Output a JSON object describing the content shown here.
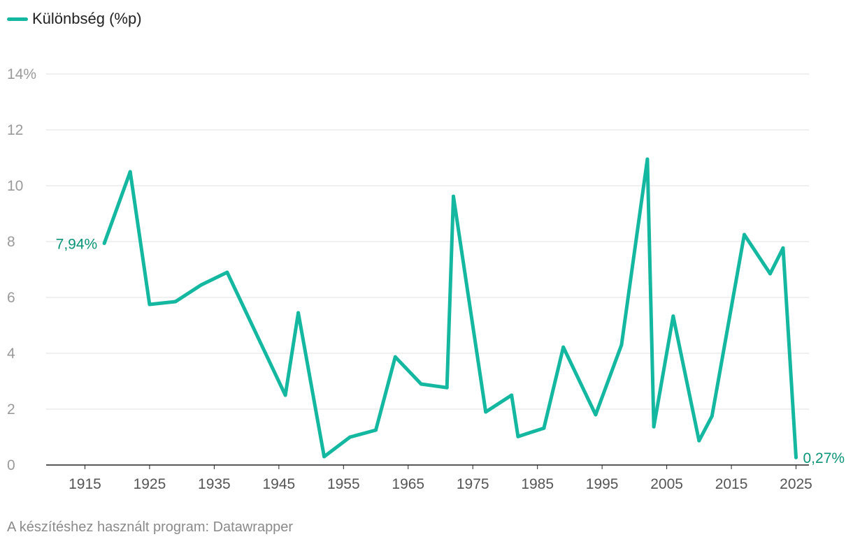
{
  "legend": {
    "label": "Különbség (%p)"
  },
  "footer": {
    "text": "A készítéshez használt program: Datawrapper"
  },
  "colors": {
    "series": "#14b8a0",
    "label": "#0a9478",
    "grid": "#e2e2e2",
    "axis": "#222222",
    "tick": "#9a9a9a"
  },
  "chart_data": {
    "type": "line",
    "ylim": [
      0,
      14
    ],
    "xlim": [
      1909,
      2027
    ],
    "y_ticks": [
      {
        "value": 0,
        "label": "0"
      },
      {
        "value": 2,
        "label": "2"
      },
      {
        "value": 4,
        "label": "4"
      },
      {
        "value": 6,
        "label": "6"
      },
      {
        "value": 8,
        "label": "8"
      },
      {
        "value": 10,
        "label": "10"
      },
      {
        "value": 12,
        "label": "12"
      },
      {
        "value": 14,
        "label": "14%"
      }
    ],
    "x_ticks": [
      1915,
      1925,
      1935,
      1945,
      1955,
      1965,
      1975,
      1985,
      1995,
      2005,
      2015,
      2025
    ],
    "grid": true,
    "series": [
      {
        "name": "Különbség (%p)",
        "x": [
          1918,
          1922,
          1925,
          1929,
          1933,
          1937,
          1946,
          1948,
          1952,
          1956,
          1960,
          1963,
          1967,
          1971,
          1972,
          1977,
          1981,
          1982,
          1986,
          1989,
          1994,
          1998,
          2002,
          2003,
          2006,
          2010,
          2012,
          2017,
          2021,
          2023,
          2025
        ],
        "y": [
          7.94,
          10.5,
          5.75,
          5.85,
          6.45,
          6.9,
          2.5,
          5.45,
          0.3,
          1.0,
          1.25,
          3.87,
          2.9,
          2.77,
          9.62,
          1.9,
          2.5,
          1.02,
          1.32,
          4.22,
          1.8,
          4.3,
          10.95,
          1.37,
          5.33,
          0.87,
          1.75,
          8.25,
          6.85,
          7.77,
          0.27
        ]
      }
    ],
    "annotations": [
      {
        "text": "7,94%",
        "x": 1918,
        "y": 7.94,
        "side": "left"
      },
      {
        "text": "0,27%",
        "x": 2025,
        "y": 0.27,
        "side": "right"
      }
    ]
  }
}
